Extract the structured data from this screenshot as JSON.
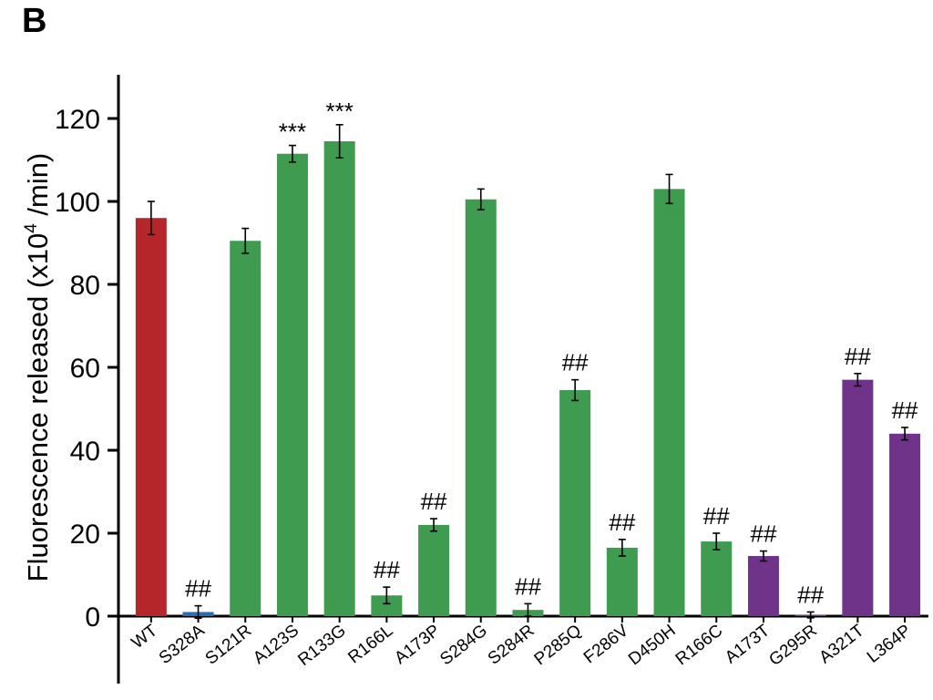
{
  "panel_label": "B",
  "chart_data": {
    "type": "bar",
    "title": "",
    "ylabel": "Fluorescence released (x10",
    "ylabel_sup": "4",
    "ylabel_tail": " /min)",
    "xlabel": "",
    "ylim": [
      0,
      130
    ],
    "yticks": [
      0,
      20,
      40,
      60,
      80,
      100,
      120
    ],
    "grid": false,
    "categories": [
      "WT",
      "S328A",
      "S121R",
      "A123S",
      "R133G",
      "R166L",
      "A173P",
      "S284G",
      "S284R",
      "P285Q",
      "F286V",
      "D450H",
      "R166C",
      "A173T",
      "G295R",
      "A321T",
      "L364P"
    ],
    "values": [
      96,
      1,
      90.5,
      111.5,
      114.5,
      5,
      22,
      100.5,
      1.5,
      54.5,
      16.5,
      103,
      18,
      14.5,
      0.3,
      57,
      44
    ],
    "errors": [
      4,
      1.5,
      3,
      2,
      4,
      2,
      1.5,
      2.5,
      1.5,
      2.5,
      2,
      3.5,
      2,
      1.2,
      0.7,
      1.5,
      1.5
    ],
    "annotations": [
      "",
      "##",
      "",
      "***",
      "***",
      "##",
      "##",
      "",
      "##",
      "##",
      "##",
      "",
      "##",
      "##",
      "##",
      "##",
      "##"
    ],
    "colors": [
      "#b5262a",
      "#2a6db2",
      "#3e9b50",
      "#3e9b50",
      "#3e9b50",
      "#3e9b50",
      "#3e9b50",
      "#3e9b50",
      "#3e9b50",
      "#3e9b50",
      "#3e9b50",
      "#3e9b50",
      "#3e9b50",
      "#6f348a",
      "#6f348a",
      "#6f348a",
      "#6f348a"
    ]
  }
}
